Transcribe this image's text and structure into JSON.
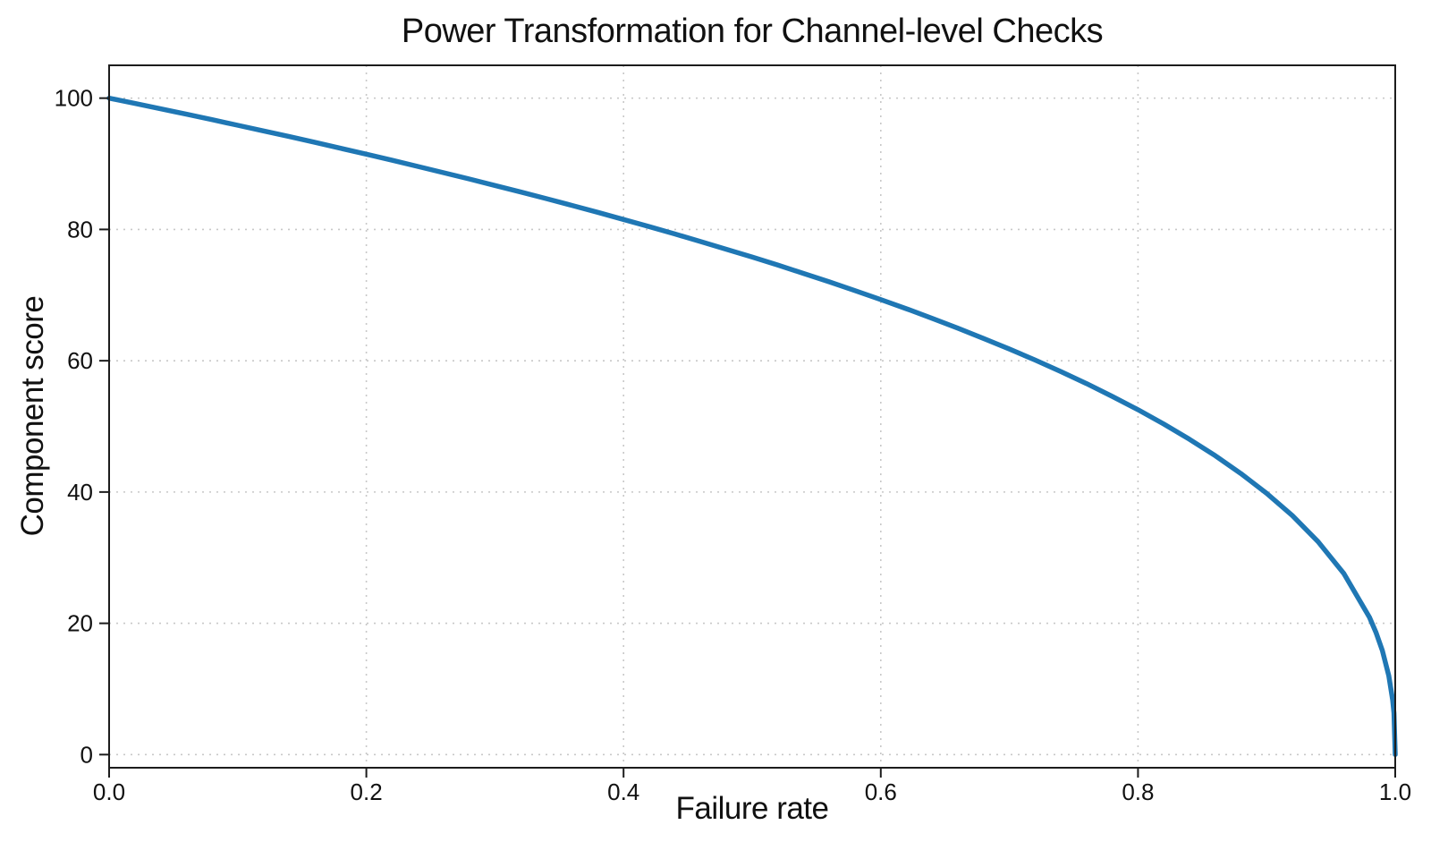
{
  "chart_data": {
    "type": "line",
    "title": "Power Transformation for Channel-level Checks",
    "xlabel": "Failure rate",
    "ylabel": "Component score",
    "xlim": [
      0.0,
      1.0
    ],
    "ylim": [
      -2,
      105
    ],
    "x_ticks": [
      0.0,
      0.2,
      0.4,
      0.6,
      0.8,
      1.0
    ],
    "x_tick_labels": [
      "0.0",
      "0.2",
      "0.4",
      "0.6",
      "0.8",
      "1.0"
    ],
    "y_ticks": [
      0,
      20,
      40,
      60,
      80,
      100
    ],
    "y_tick_labels": [
      "0",
      "20",
      "40",
      "60",
      "80",
      "100"
    ],
    "grid": {
      "visible": true,
      "style": "dotted",
      "color": "#c8c8c8"
    },
    "legend": {
      "visible": false
    },
    "series": [
      {
        "name": "component-score-curve",
        "color": "#1f77b4",
        "line_width": 5.5,
        "formula": "y = 100 * (1 - x)^0.4",
        "x": [
          0.0,
          0.02,
          0.04,
          0.06,
          0.08,
          0.1,
          0.12,
          0.14,
          0.16,
          0.18,
          0.2,
          0.22,
          0.24,
          0.26,
          0.28,
          0.3,
          0.32,
          0.34,
          0.36,
          0.38,
          0.4,
          0.42,
          0.44,
          0.46,
          0.48,
          0.5,
          0.52,
          0.54,
          0.56,
          0.58,
          0.6,
          0.62,
          0.64,
          0.66,
          0.68,
          0.7,
          0.72,
          0.74,
          0.76,
          0.78,
          0.8,
          0.82,
          0.84,
          0.86,
          0.88,
          0.9,
          0.92,
          0.94,
          0.96,
          0.98,
          0.985,
          0.99,
          0.995,
          0.998,
          0.999,
          1.0
        ],
        "y": [
          100.0,
          99.19,
          98.38,
          97.56,
          96.72,
          95.87,
          95.01,
          94.15,
          93.26,
          92.37,
          91.46,
          90.54,
          89.6,
          88.65,
          87.69,
          86.7,
          85.7,
          84.69,
          83.65,
          82.6,
          81.52,
          80.42,
          79.3,
          78.15,
          76.98,
          75.79,
          74.56,
          73.3,
          72.01,
          70.68,
          69.31,
          67.91,
          66.45,
          64.95,
          63.39,
          61.78,
          60.1,
          58.34,
          56.51,
          54.57,
          52.53,
          50.36,
          48.04,
          45.55,
          42.82,
          39.81,
          36.41,
          32.45,
          27.59,
          20.91,
          18.64,
          15.85,
          12.01,
          8.33,
          6.31,
          0.0
        ]
      }
    ]
  },
  "colors": {
    "background": "#ffffff",
    "axis": "#1c1c1c",
    "text": "#111111"
  }
}
